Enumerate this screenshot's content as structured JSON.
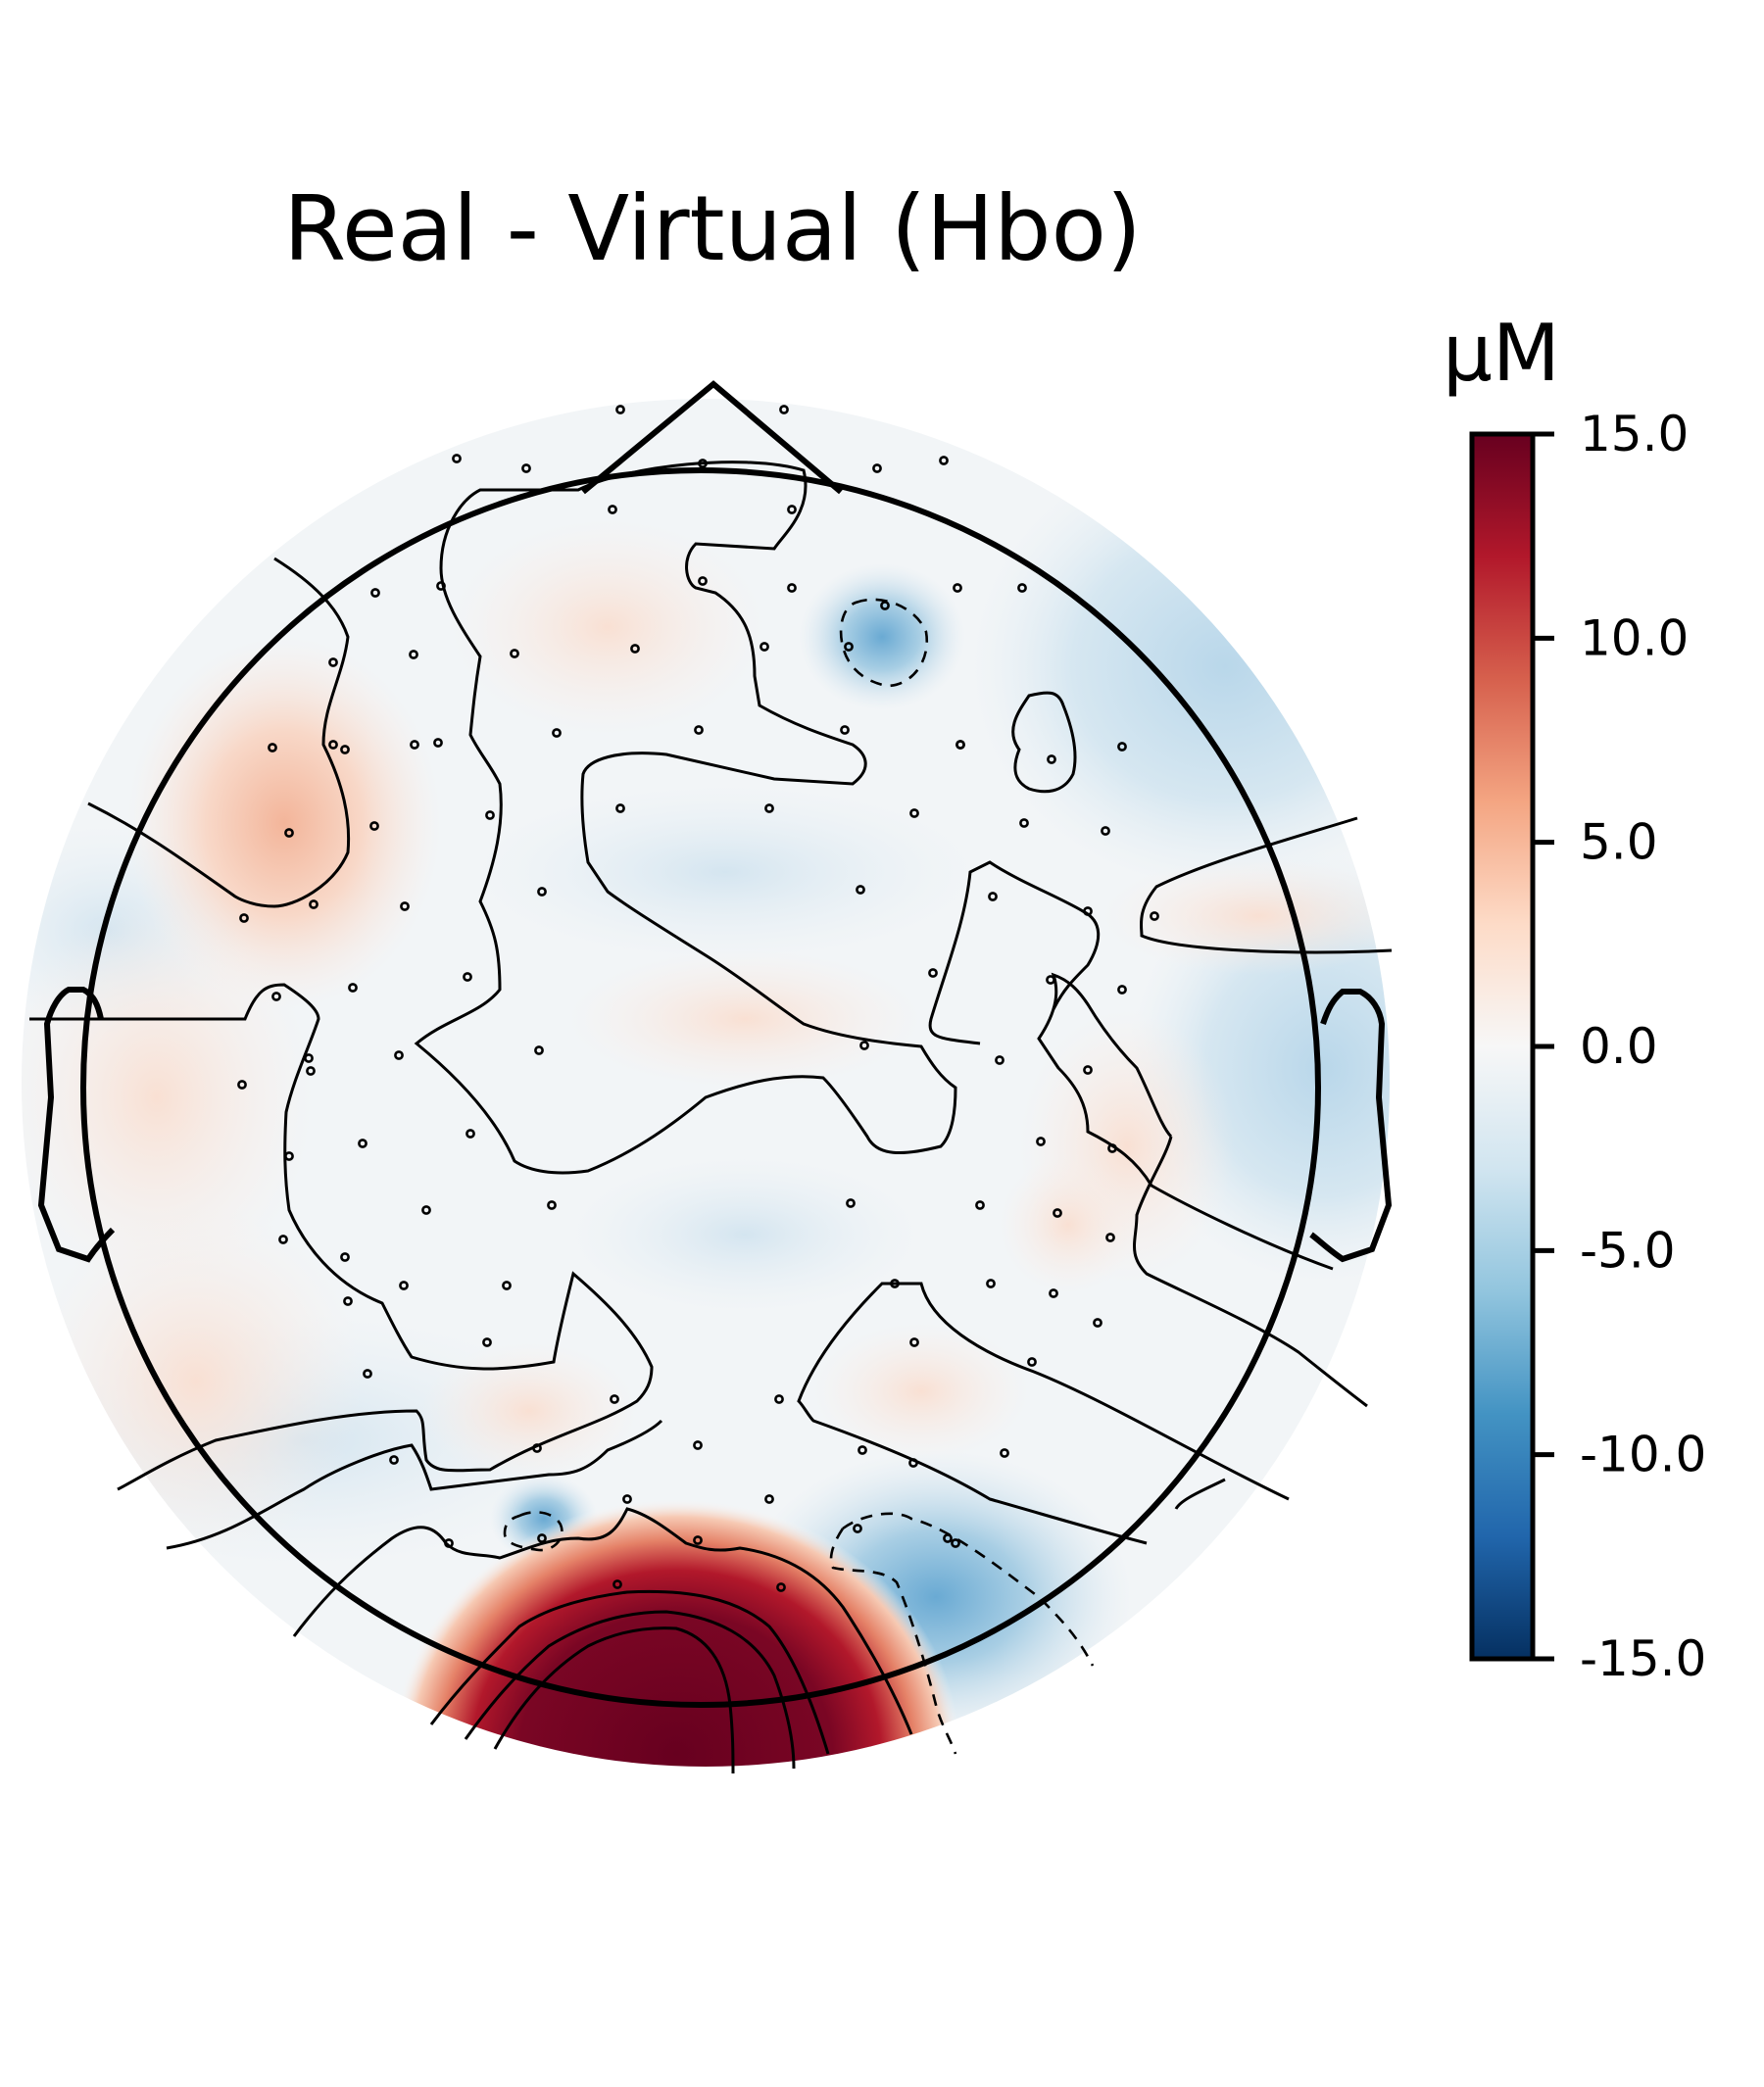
{
  "chart_data": {
    "type": "heatmap",
    "subtype": "topographic-map",
    "title": "Real - Virtual (Hbo)",
    "colorbar": {
      "label": "µM",
      "range": [
        -15.0,
        15.0
      ],
      "ticks": [
        "15.0",
        "10.0",
        "5.0",
        "0.0",
        "-5.0",
        "-10.0",
        "-15.0"
      ],
      "tick_values": [
        15.0,
        10.0,
        5.0,
        0.0,
        -5.0,
        -10.0,
        -15.0
      ],
      "colormap": "RdBu_r",
      "colormap_stops": [
        "#053061",
        "#2166ac",
        "#4393c3",
        "#92c5de",
        "#d1e5f0",
        "#f7f7f7",
        "#fddbc7",
        "#f4a582",
        "#d6604d",
        "#b2182b",
        "#67001f"
      ]
    },
    "features": [
      {
        "region": "occipital midline",
        "value": 15.0,
        "note": "strongest positive (saturated)"
      },
      {
        "region": "right parieto-occipital",
        "value": -5.0,
        "note": "negative region"
      },
      {
        "region": "right frontal",
        "value": -5.0,
        "note": "negative region"
      },
      {
        "region": "left parieto-occipital",
        "value": -4.0,
        "note": "negative region"
      },
      {
        "region": "left fronto-temporal",
        "value": 3.5,
        "note": "positive region"
      },
      {
        "region": "right temporal",
        "value": -2.5,
        "note": "negative region"
      }
    ],
    "contour_levels": [
      -5.0,
      0.0,
      5.0,
      10.0
    ],
    "colors": {
      "line": "#000000",
      "background": "#ffffff"
    }
  }
}
